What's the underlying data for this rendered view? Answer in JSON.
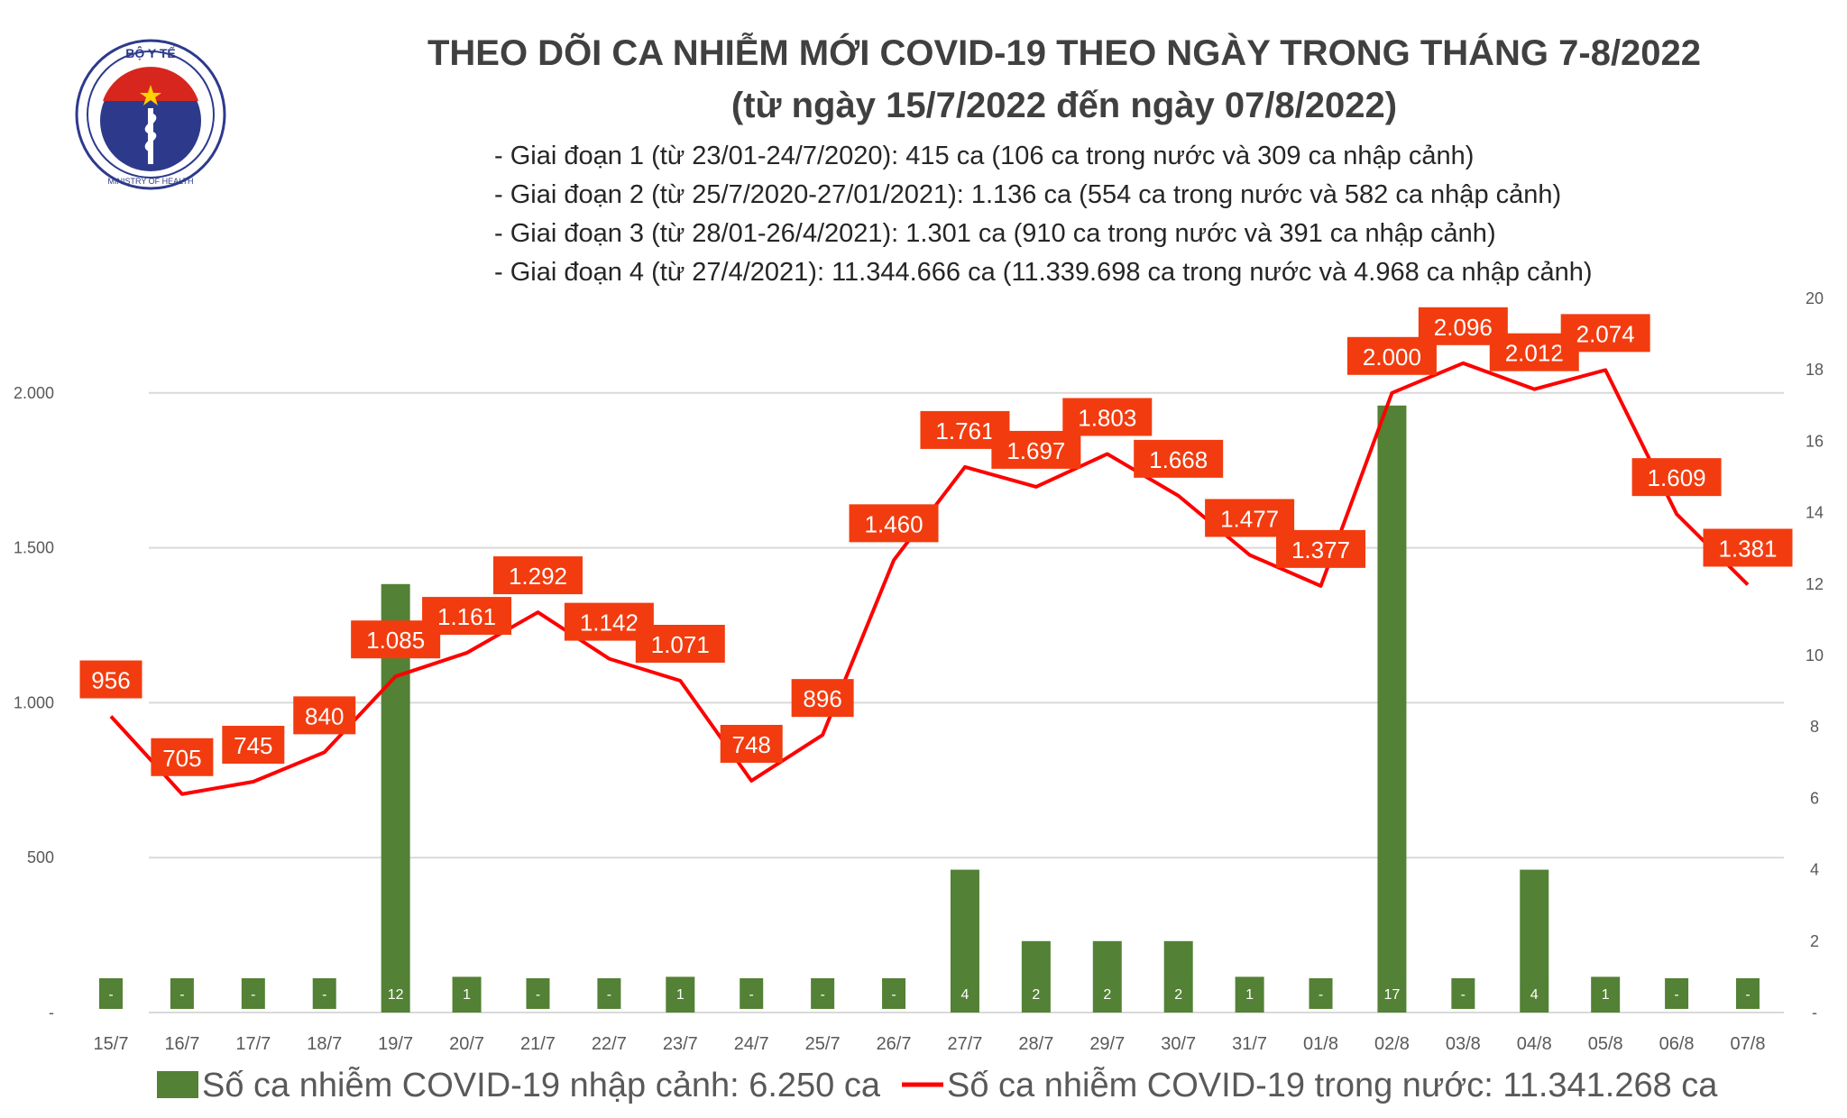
{
  "logo": {
    "top_text": "BỘ Y TẾ",
    "bottom_text": "MINISTRY OF HEALTH"
  },
  "title_line1": "THEO DÕI CA NHIỄM MỚI COVID-19 THEO NGÀY TRONG THÁNG 7-8/2022",
  "title_line2": "(từ ngày 15/7/2022 đến ngày 07/8/2022)",
  "notes": [
    "- Giai đoạn 1 (từ 23/01-24/7/2020): 415 ca (106 ca trong nước và 309 ca nhập cảnh)",
    "- Giai đoạn 2 (từ 25/7/2020-27/01/2021): 1.136 ca (554 ca trong nước và 582 ca nhập cảnh)",
    "- Giai đoạn 3 (từ 28/01-26/4/2021): 1.301 ca (910 ca trong nước và 391 ca nhập cảnh)",
    "- Giai đoạn 4 (từ 27/4/2021): 11.344.666 ca (11.339.698 ca trong nước và 4.968 ca nhập cảnh)"
  ],
  "chart_data": {
    "type": "bar+line",
    "categories": [
      "15/7",
      "16/7",
      "17/7",
      "18/7",
      "19/7",
      "20/7",
      "21/7",
      "22/7",
      "23/7",
      "24/7",
      "25/7",
      "26/7",
      "27/7",
      "28/7",
      "29/7",
      "30/7",
      "31/7",
      "01/8",
      "02/8",
      "03/8",
      "04/8",
      "05/8",
      "06/8",
      "07/8"
    ],
    "series": [
      {
        "name": "Số ca nhiễm COVID-19 nhập cảnh: 6.250 ca",
        "type": "bar",
        "axis": "right",
        "color": "#538135",
        "values": [
          0,
          0,
          0,
          0,
          12,
          1,
          0,
          0,
          1,
          0,
          0,
          0,
          4,
          2,
          2,
          2,
          1,
          0,
          17,
          0,
          4,
          1,
          0,
          0
        ]
      },
      {
        "name": "Số ca nhiễm COVID-19 trong nước: 11.341.268 ca",
        "type": "line",
        "axis": "left",
        "color": "#ff0000",
        "values": [
          956,
          705,
          745,
          840,
          1085,
          1161,
          1292,
          1142,
          1071,
          748,
          896,
          1460,
          1761,
          1697,
          1803,
          1668,
          1477,
          1377,
          2000,
          2096,
          2012,
          2074,
          1609,
          1381
        ]
      }
    ],
    "y_left_ticks": [
      "-",
      "500",
      "1.000",
      "1.500",
      "2.000"
    ],
    "y_left_tick_values": [
      0,
      500,
      1000,
      1500,
      2000
    ],
    "y_right_ticks": [
      "-",
      "2",
      "4",
      "6",
      "8",
      "10",
      "12",
      "14",
      "16",
      "18",
      "20"
    ],
    "ylim_left": [
      0,
      2305
    ],
    "ylim_right": [
      0,
      20
    ],
    "label_color": "#f23c0f",
    "grid": true,
    "legend": "bottom"
  }
}
